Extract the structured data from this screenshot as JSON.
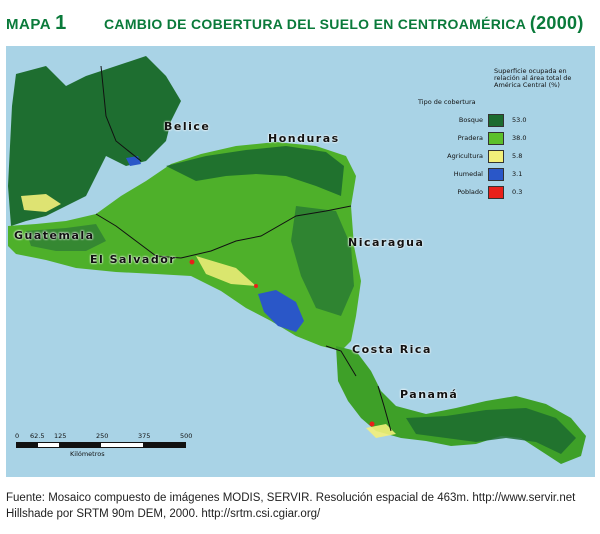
{
  "header": {
    "map_label": "MAPA",
    "map_number": "1",
    "title": "CAMBIO DE COBERTURA DEL SUELO EN CENTROAMÉRICA",
    "year": "(2000)"
  },
  "countries": {
    "belize": "Belice",
    "honduras": "Honduras",
    "guatemala": "Guatemala",
    "el_salvador": "El Salvador",
    "nicaragua": "Nicaragua",
    "costa_rica": "Costa Rica",
    "panama": "Panamá"
  },
  "legend": {
    "heading": "Superficie ocupada en relación al área total de América Central (%)",
    "subheading": "Tipo de cobertura",
    "items": [
      {
        "label": "Bosque",
        "value": "53.0",
        "color": "#1c6b2f"
      },
      {
        "label": "Pradera",
        "value": "38.0",
        "color": "#5cc02a"
      },
      {
        "label": "Agricultura",
        "value": "5.8",
        "color": "#f3f07a"
      },
      {
        "label": "Humedal",
        "value": "3.1",
        "color": "#2a57c8"
      },
      {
        "label": "Poblado",
        "value": "0.3",
        "color": "#e8201a"
      }
    ]
  },
  "scale": {
    "ticks": [
      "0",
      "62.5",
      "125",
      "250",
      "375",
      "500"
    ],
    "unit": "Kilómetros"
  },
  "source": {
    "line1": "Fuente: Mosaico compuesto de imágenes MODIS, SERVIR. Resolución espacial de 463m. http://www.servir.net",
    "line2": "Hillshade por SRTM 90m DEM, 2000. http://srtm.csi.cgiar.org/"
  },
  "colors": {
    "title": "#0a7a3a",
    "sea": "#a9d3e6",
    "forest": "#1c6b2f",
    "grassland": "#5cc02a",
    "agriculture": "#f3f07a",
    "wetland": "#2a57c8",
    "urban": "#e8201a"
  }
}
